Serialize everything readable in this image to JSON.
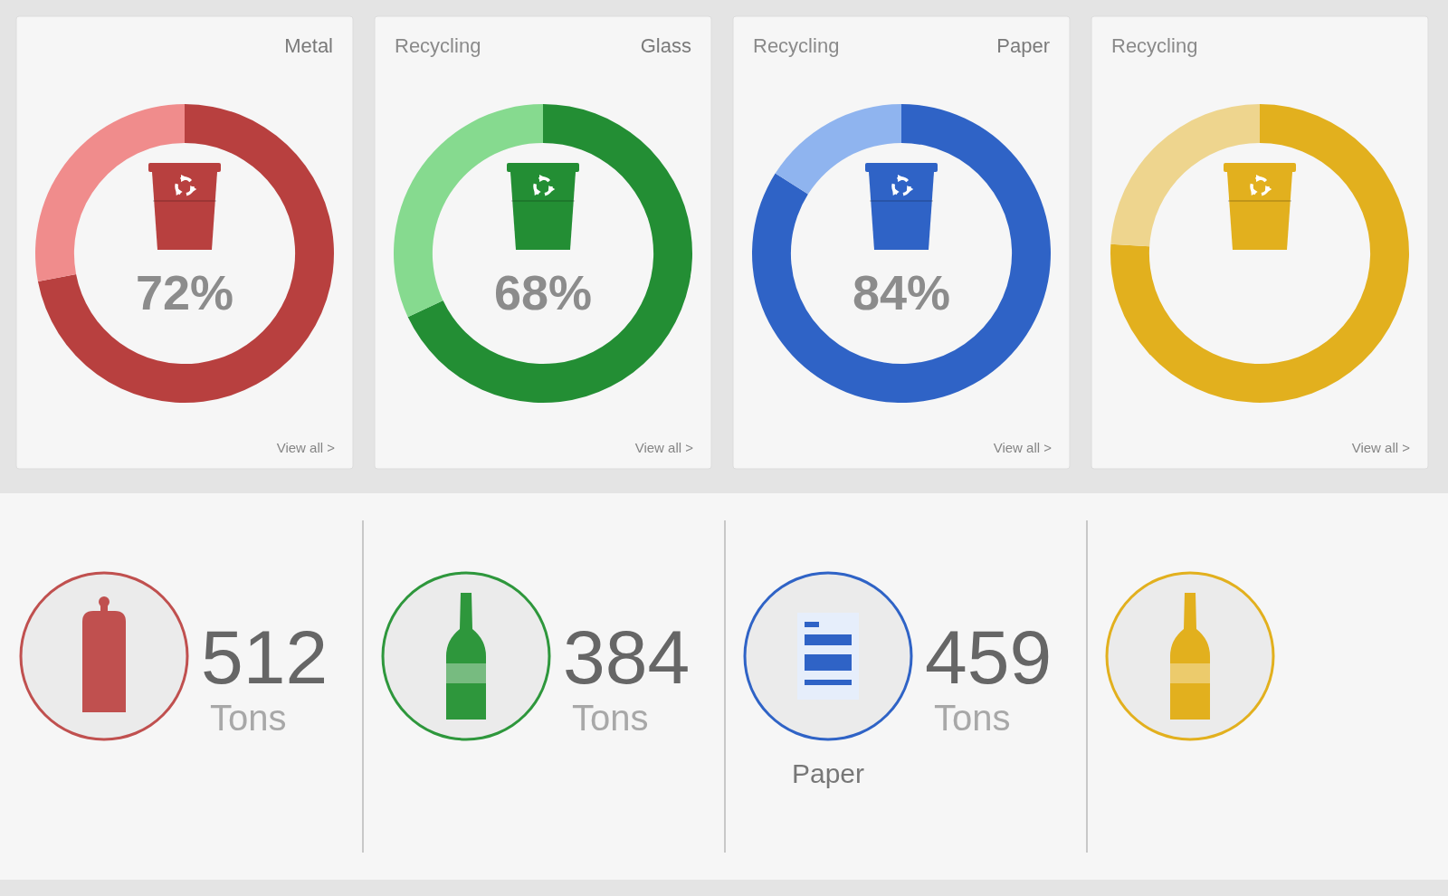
{
  "chart_data": [
    {
      "type": "donut",
      "subtitle": "Metal",
      "categories": [
        null,
        null
      ],
      "values": [
        72,
        28
      ],
      "colors": [
        "#b8403f",
        "#f08c8c"
      ],
      "value_labels": [
        "72%",
        null
      ],
      "annotations": [
        "View all >"
      ]
    },
    {
      "type": "donut",
      "title": "Recycling",
      "subtitle": "Glass",
      "categories": [
        null,
        null
      ],
      "values": [
        68,
        32
      ],
      "colors": [
        "#238e34",
        "#86da8f"
      ],
      "value_labels": [
        "68%",
        null
      ],
      "annotations": [
        "View all >"
      ]
    },
    {
      "type": "donut",
      "title": "Recycling",
      "subtitle": "Paper",
      "categories": [
        null,
        null
      ],
      "values": [
        84,
        16
      ],
      "colors": [
        "#2f63c6",
        "#8fb4ef"
      ],
      "value_labels": [
        "84%",
        null
      ],
      "annotations": [
        "View all >"
      ]
    },
    {
      "type": "donut",
      "title": "Recycling",
      "categories": [
        null,
        null
      ],
      "values": [
        76,
        24
      ],
      "colors": [
        "#e2b01e",
        "#eed58e"
      ],
      "annotations": [
        "View all >"
      ]
    },
    {
      "type": "other",
      "color": "#c0504f",
      "annotations": [
        "512",
        "Tons"
      ]
    },
    {
      "type": "other",
      "color": "#2e973c",
      "annotations": [
        "384",
        "Tons"
      ]
    },
    {
      "type": "other",
      "title": "Paper",
      "color": "#2f63c6",
      "annotations": [
        "459",
        "Tons"
      ]
    },
    {
      "type": "other",
      "color": "#e2b01e"
    }
  ]
}
